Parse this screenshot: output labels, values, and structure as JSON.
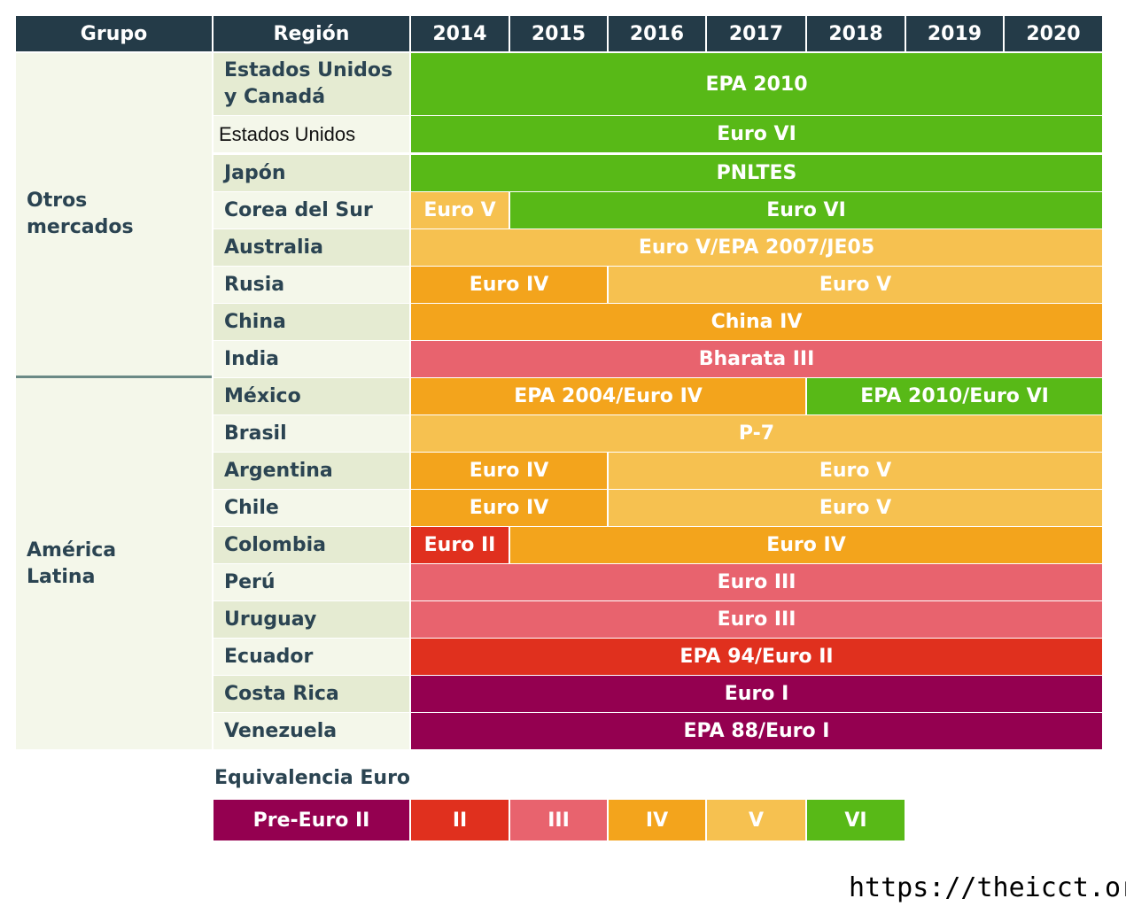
{
  "colors": {
    "Pre-Euro II": "#940050",
    "II": "#e0301e",
    "III": "#e8636e",
    "IV": "#f3a41c",
    "V": "#f6c150",
    "VI": "#58b917"
  },
  "header": {
    "group": "Grupo",
    "region": "Región",
    "years": [
      "2014",
      "2015",
      "2016",
      "2017",
      "2018",
      "2019",
      "2020"
    ]
  },
  "groups": [
    {
      "name": "Otros\nmercados"
    },
    {
      "name": "América\nLatina"
    }
  ],
  "chart_data": {
    "type": "table",
    "rows": [
      {
        "region": "Estados Unidos\ny Canadá",
        "segments": [
          {
            "label": "EPA 2010",
            "start": "2014",
            "end": "2020",
            "level": "VI"
          }
        ]
      },
      {
        "region": "Estados Unidos",
        "segments": [
          {
            "label": "Euro VI",
            "start": "2014",
            "end": "2020",
            "level": "VI"
          }
        ]
      },
      {
        "region": "Japón",
        "segments": [
          {
            "label": "PNLTES",
            "start": "2014",
            "end": "2020",
            "level": "VI"
          }
        ]
      },
      {
        "region": "Corea del Sur",
        "segments": [
          {
            "label": "Euro V",
            "start": "2014",
            "end": "2014",
            "level": "V"
          },
          {
            "label": "Euro VI",
            "start": "2015",
            "end": "2020",
            "level": "VI"
          }
        ]
      },
      {
        "region": "Australia",
        "segments": [
          {
            "label": "Euro V/EPA 2007/JE05",
            "start": "2014",
            "end": "2020",
            "level": "V"
          }
        ]
      },
      {
        "region": "Rusia",
        "segments": [
          {
            "label": "Euro IV",
            "start": "2014",
            "end": "2015",
            "level": "IV"
          },
          {
            "label": "Euro V",
            "start": "2016",
            "end": "2020",
            "level": "V"
          }
        ]
      },
      {
        "region": "China",
        "segments": [
          {
            "label": "China IV",
            "start": "2014",
            "end": "2020",
            "level": "IV"
          }
        ]
      },
      {
        "region": "India",
        "segments": [
          {
            "label": "Bharata III",
            "start": "2014",
            "end": "2020",
            "level": "III"
          }
        ]
      },
      {
        "region": "México",
        "segments": [
          {
            "label": "EPA 2004/Euro IV",
            "start": "2014",
            "end": "2017",
            "level": "IV"
          },
          {
            "label": "EPA 2010/Euro VI",
            "start": "2018",
            "end": "2020",
            "level": "VI"
          }
        ]
      },
      {
        "region": "Brasil",
        "segments": [
          {
            "label": "P-7",
            "start": "2014",
            "end": "2020",
            "level": "V"
          }
        ]
      },
      {
        "region": "Argentina",
        "segments": [
          {
            "label": "Euro IV",
            "start": "2014",
            "end": "2015",
            "level": "IV"
          },
          {
            "label": "Euro V",
            "start": "2016",
            "end": "2020",
            "level": "V"
          }
        ]
      },
      {
        "region": "Chile",
        "segments": [
          {
            "label": "Euro IV",
            "start": "2014",
            "end": "2015",
            "level": "IV"
          },
          {
            "label": "Euro V",
            "start": "2016",
            "end": "2020",
            "level": "V"
          }
        ]
      },
      {
        "region": "Colombia",
        "segments": [
          {
            "label": "Euro II",
            "start": "2014",
            "end": "2014",
            "level": "II"
          },
          {
            "label": "Euro IV",
            "start": "2015",
            "end": "2020",
            "level": "IV"
          }
        ]
      },
      {
        "region": "Perú",
        "segments": [
          {
            "label": "Euro III",
            "start": "2014",
            "end": "2020",
            "level": "III"
          }
        ]
      },
      {
        "region": "Uruguay",
        "segments": [
          {
            "label": "Euro III",
            "start": "2014",
            "end": "2020",
            "level": "III"
          }
        ]
      },
      {
        "region": "Ecuador",
        "segments": [
          {
            "label": "EPA 94/Euro II",
            "start": "2014",
            "end": "2020",
            "level": "II"
          }
        ]
      },
      {
        "region": "Costa Rica",
        "segments": [
          {
            "label": "Euro I",
            "start": "2014",
            "end": "2020",
            "level": "Pre-Euro II"
          }
        ]
      },
      {
        "region": "Venezuela",
        "segments": [
          {
            "label": "EPA 88/Euro I",
            "start": "2014",
            "end": "2020",
            "level": "Pre-Euro II"
          }
        ]
      }
    ]
  },
  "legend": {
    "title": "Equivalencia Euro",
    "items": [
      "Pre-Euro II",
      "II",
      "III",
      "IV",
      "V",
      "VI"
    ]
  },
  "source": "https://theicct.org/"
}
